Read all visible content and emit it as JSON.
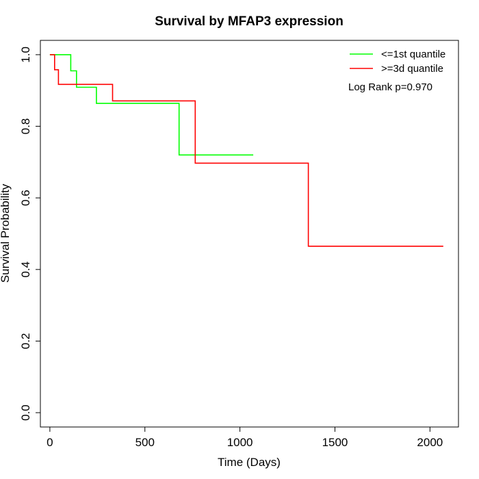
{
  "chart_data": {
    "type": "line",
    "title": "Survival by MFAP3 expression",
    "xlabel": "Time (Days)",
    "ylabel": "Survival Probability",
    "xlim": [
      -50,
      2150
    ],
    "ylim": [
      -0.04,
      1.04
    ],
    "xticks": [
      0,
      500,
      1000,
      1500,
      2000
    ],
    "xtick_labels": [
      "0",
      "500",
      "1000",
      "1500",
      "2000"
    ],
    "yticks": [
      0.0,
      0.2,
      0.4,
      0.6,
      0.8,
      1.0
    ],
    "ytick_labels": [
      "0.0",
      "0.2",
      "0.4",
      "0.6",
      "0.8",
      "1.0"
    ],
    "grid": false,
    "legend_position": "top-right",
    "annotation": "Log Rank p=0.970",
    "series": [
      {
        "name": "<=1st quantile",
        "color": "#00ff00",
        "step": true,
        "points": [
          [
            0,
            1.0
          ],
          [
            110,
            1.0
          ],
          [
            110,
            0.955
          ],
          [
            140,
            0.955
          ],
          [
            140,
            0.909
          ],
          [
            245,
            0.909
          ],
          [
            245,
            0.864
          ],
          [
            680,
            0.864
          ],
          [
            680,
            0.72
          ],
          [
            1070,
            0.72
          ]
        ]
      },
      {
        "name": ">=3d quantile",
        "color": "#ff0000",
        "step": true,
        "points": [
          [
            0,
            1.0
          ],
          [
            25,
            1.0
          ],
          [
            25,
            0.958
          ],
          [
            45,
            0.958
          ],
          [
            45,
            0.917
          ],
          [
            330,
            0.917
          ],
          [
            330,
            0.871
          ],
          [
            765,
            0.871
          ],
          [
            765,
            0.697
          ],
          [
            1360,
            0.697
          ],
          [
            1360,
            0.465
          ],
          [
            2070,
            0.465
          ]
        ]
      }
    ]
  }
}
